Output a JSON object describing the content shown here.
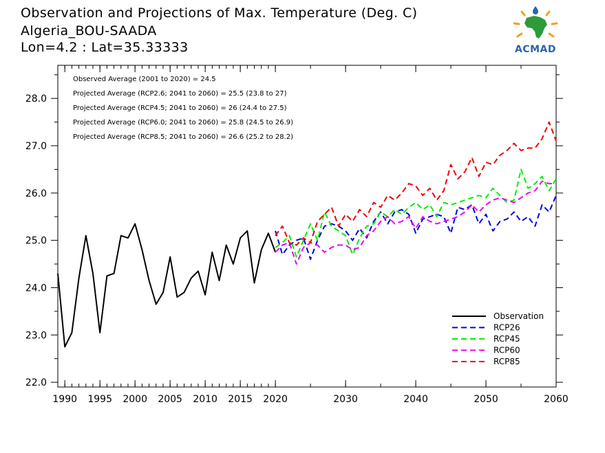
{
  "header": {
    "title": "Observation and Projections of Max. Temperature (Deg. C)",
    "station": "Algeria_BOU-SAADA",
    "coords": "Lon=4.2 : Lat=35.33333"
  },
  "logo": {
    "text": "ACMAD"
  },
  "chart_data": {
    "type": "line",
    "xlim": [
      1989,
      2060
    ],
    "ylim": [
      21.9,
      28.7
    ],
    "x_ticks": [
      1990,
      1995,
      2000,
      2005,
      2010,
      2015,
      2020,
      2030,
      2040,
      2050,
      2060
    ],
    "y_ticks": [
      "22.0",
      "23.0",
      "24.0",
      "25.0",
      "26.0",
      "27.0",
      "28.0"
    ],
    "annotations": [
      "Observed Average (2001 to 2020) = 24.5",
      "Projected Average (RCP2.6; 2041 to 2060) = 25.5 (23.8 to 27)",
      "Projected Average (RCP4.5; 2041 to 2060) = 26 (24.4 to 27.5)",
      "Projected Average (RCP6.0; 2041 to 2060) = 25.8 (24.5 to 26.9)",
      "Projected Average (RCP8.5; 2041 to 2060) = 26.6 (25.2 to 28.2)"
    ],
    "legend_position": "bottom-right",
    "series": [
      {
        "name": "Observation",
        "color": "#000000",
        "dash": false,
        "x": [
          1989,
          1990,
          1991,
          1992,
          1993,
          1994,
          1995,
          1996,
          1997,
          1998,
          1999,
          2000,
          2001,
          2002,
          2003,
          2004,
          2005,
          2006,
          2007,
          2008,
          2009,
          2010,
          2011,
          2012,
          2013,
          2014,
          2015,
          2016,
          2017,
          2018,
          2019,
          2020
        ],
        "y": [
          24.3,
          22.75,
          23.05,
          24.2,
          25.1,
          24.3,
          23.05,
          24.25,
          24.3,
          25.1,
          25.05,
          25.35,
          24.8,
          24.15,
          23.65,
          23.9,
          24.65,
          23.8,
          23.9,
          24.2,
          24.35,
          23.85,
          24.75,
          24.15,
          24.9,
          24.5,
          25.05,
          25.2,
          24.1,
          24.8,
          25.15,
          24.75
        ]
      },
      {
        "name": "RCP26",
        "color": "#0000dd",
        "dash": true,
        "x": [
          2020,
          2021,
          2022,
          2023,
          2024,
          2025,
          2026,
          2027,
          2028,
          2029,
          2030,
          2031,
          2032,
          2033,
          2034,
          2035,
          2036,
          2037,
          2038,
          2039,
          2040,
          2041,
          2042,
          2043,
          2044,
          2045,
          2046,
          2047,
          2048,
          2049,
          2050,
          2051,
          2052,
          2053,
          2054,
          2055,
          2056,
          2057,
          2058,
          2059,
          2060
        ],
        "y": [
          25.2,
          24.7,
          24.9,
          25.0,
          25.05,
          24.6,
          25.0,
          25.3,
          25.35,
          25.3,
          25.2,
          25.0,
          25.25,
          25.05,
          25.4,
          25.6,
          25.35,
          25.6,
          25.65,
          25.55,
          25.15,
          25.45,
          25.5,
          25.55,
          25.5,
          25.15,
          25.7,
          25.65,
          25.75,
          25.35,
          25.55,
          25.2,
          25.4,
          25.45,
          25.6,
          25.4,
          25.5,
          25.3,
          25.75,
          25.6,
          25.95
        ]
      },
      {
        "name": "RCP45",
        "color": "#00ee00",
        "dash": true,
        "x": [
          2020,
          2021,
          2022,
          2023,
          2024,
          2025,
          2026,
          2027,
          2028,
          2029,
          2030,
          2031,
          2032,
          2033,
          2034,
          2035,
          2036,
          2037,
          2038,
          2039,
          2040,
          2041,
          2042,
          2043,
          2044,
          2045,
          2046,
          2047,
          2048,
          2049,
          2050,
          2051,
          2052,
          2053,
          2054,
          2055,
          2056,
          2057,
          2058,
          2059,
          2060
        ],
        "y": [
          24.85,
          24.95,
          25.1,
          24.65,
          25.0,
          25.35,
          25.0,
          25.6,
          25.3,
          25.2,
          25.1,
          24.7,
          25.05,
          25.3,
          25.35,
          25.6,
          25.5,
          25.65,
          25.55,
          25.7,
          25.8,
          25.65,
          25.75,
          25.5,
          25.8,
          25.75,
          25.8,
          25.85,
          25.9,
          25.95,
          25.9,
          26.1,
          25.95,
          25.8,
          25.85,
          26.5,
          26.1,
          26.2,
          26.35,
          26.05,
          26.3
        ]
      },
      {
        "name": "RCP60",
        "color": "#ee00ee",
        "dash": true,
        "x": [
          2020,
          2021,
          2022,
          2023,
          2024,
          2025,
          2026,
          2027,
          2028,
          2029,
          2030,
          2031,
          2032,
          2033,
          2034,
          2035,
          2036,
          2037,
          2038,
          2039,
          2040,
          2041,
          2042,
          2043,
          2044,
          2045,
          2046,
          2047,
          2048,
          2049,
          2050,
          2051,
          2052,
          2053,
          2054,
          2055,
          2056,
          2057,
          2058,
          2059,
          2060
        ],
        "y": [
          24.75,
          24.9,
          24.95,
          24.5,
          24.85,
          24.95,
          24.9,
          24.75,
          24.85,
          24.9,
          24.9,
          24.8,
          24.85,
          25.1,
          25.2,
          25.4,
          25.5,
          25.35,
          25.4,
          25.5,
          25.25,
          25.5,
          25.4,
          25.35,
          25.4,
          25.45,
          25.5,
          25.6,
          25.75,
          25.6,
          25.75,
          25.85,
          25.9,
          25.85,
          25.8,
          25.9,
          26.0,
          26.05,
          26.25,
          26.2,
          26.2
        ]
      },
      {
        "name": "RCP85",
        "color": "#ee0000",
        "dash": true,
        "x": [
          2020,
          2021,
          2022,
          2023,
          2024,
          2025,
          2026,
          2027,
          2028,
          2029,
          2030,
          2031,
          2032,
          2033,
          2034,
          2035,
          2036,
          2037,
          2038,
          2039,
          2040,
          2041,
          2042,
          2043,
          2044,
          2045,
          2046,
          2047,
          2048,
          2049,
          2050,
          2051,
          2052,
          2053,
          2054,
          2055,
          2056,
          2057,
          2058,
          2059,
          2060
        ],
        "y": [
          25.1,
          25.3,
          24.95,
          24.9,
          25.05,
          24.95,
          25.4,
          25.55,
          25.7,
          25.3,
          25.55,
          25.4,
          25.65,
          25.5,
          25.8,
          25.7,
          25.95,
          25.85,
          26.0,
          26.2,
          26.15,
          25.95,
          26.1,
          25.85,
          26.05,
          26.6,
          26.3,
          26.45,
          26.75,
          26.35,
          26.65,
          26.6,
          26.8,
          26.9,
          27.05,
          26.9,
          26.95,
          26.95,
          27.15,
          27.5,
          27.1
        ]
      }
    ]
  }
}
